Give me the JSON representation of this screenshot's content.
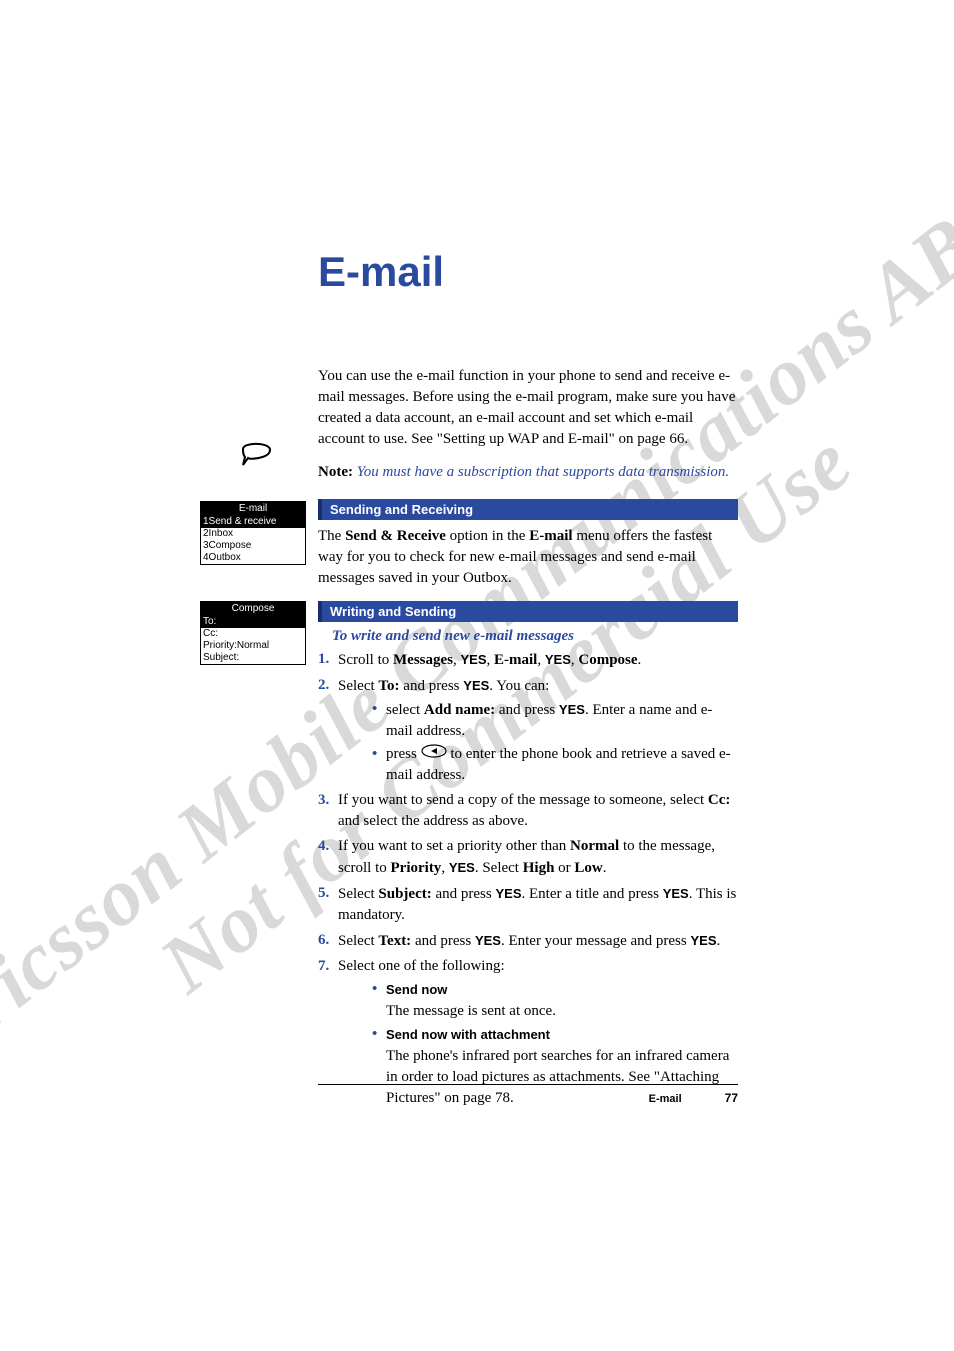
{
  "watermark": {
    "line1": "Ericsson Mobile Communications AB",
    "line2": "Not for Commercial Use",
    "color": "#d9d9d9",
    "fontsize": 82
  },
  "title": {
    "text": "E-mail",
    "color": "#2a4aa0",
    "fontsize": 42
  },
  "intro": "You can use the e-mail function in your phone to send and receive e-mail messages. Before using the e-mail program, make sure you have created a data account, an e-mail account and set which e-mail account to use. See \"Setting up WAP and E-mail\" on page 66.",
  "note": {
    "label": "Note:",
    "text": "You must have a subscription that supports data transmission.",
    "italic_color": "#2a4aa0"
  },
  "sections": {
    "send_recv": {
      "heading": "Sending and Receiving",
      "body_pre": "The ",
      "body_b1": "Send & Receive",
      "body_mid": " option in the ",
      "body_b2": "E-mail",
      "body_post": " menu offers the fastest way for you to check for new e-mail messages and send e-mail messages saved in your Outbox."
    },
    "write_send": {
      "heading": "Writing and Sending",
      "subhead": "To write and send new e-mail messages",
      "steps": [
        {
          "n": "1.",
          "segments": [
            "Scroll to ",
            {
              "b": "Messages"
            },
            ", ",
            {
              "sb": "YES"
            },
            ", ",
            {
              "b": "E-mail"
            },
            ", ",
            {
              "sb": "YES"
            },
            ", ",
            {
              "b": "Compose"
            },
            "."
          ]
        },
        {
          "n": "2.",
          "segments": [
            "Select ",
            {
              "b": "To:"
            },
            " and press ",
            {
              "sb": "YES"
            },
            ". You can:"
          ],
          "bullets": [
            {
              "segments": [
                "select ",
                {
                  "b": "Add name:"
                },
                " and press ",
                {
                  "sb": "YES"
                },
                ". Enter a name and e-mail address."
              ]
            },
            {
              "segments": [
                "press ",
                {
                  "icon": "left-key"
                },
                " to enter the phone book and retrieve a saved e-mail address."
              ]
            }
          ]
        },
        {
          "n": "3.",
          "segments": [
            "If you want to send a copy of the message to someone, select ",
            {
              "b": "Cc:"
            },
            " and select the address as above."
          ]
        },
        {
          "n": "4.",
          "segments": [
            "If you want to set a priority other than ",
            {
              "b": "Normal"
            },
            " to the message, scroll to ",
            {
              "b": "Priority"
            },
            ", ",
            {
              "sb": "YES"
            },
            ". Select ",
            {
              "b": "High"
            },
            " or ",
            {
              "b": "Low"
            },
            "."
          ]
        },
        {
          "n": "5.",
          "segments": [
            "Select ",
            {
              "b": "Subject:"
            },
            " and press ",
            {
              "sb": "YES"
            },
            ". Enter a title and press ",
            {
              "sb": "YES"
            },
            ". This is mandatory."
          ]
        },
        {
          "n": "6.",
          "segments": [
            "Select ",
            {
              "b": "Text:"
            },
            " and press ",
            {
              "sb": "YES"
            },
            ". Enter your message and press ",
            {
              "sb": "YES"
            },
            "."
          ]
        },
        {
          "n": "7.",
          "segments": [
            "Select one of the following:"
          ],
          "subitems": [
            {
              "title": "Send now",
              "body": "The message is sent at once."
            },
            {
              "title": "Send now with attachment",
              "body": "The phone's infrared port searches for an infrared camera in order to load pictures as attachments. See \"Attaching Pictures\" on page 78."
            }
          ]
        }
      ]
    }
  },
  "side": {
    "screen1": {
      "title": "E-mail",
      "rows": [
        {
          "text": "1Send & receive",
          "selected": true
        },
        {
          "text": "2Inbox",
          "selected": false
        },
        {
          "text": "3Compose",
          "selected": false
        },
        {
          "text": "4Outbox",
          "selected": false
        }
      ]
    },
    "screen2": {
      "title": "Compose",
      "rows": [
        {
          "text": "To:",
          "selected": true
        },
        {
          "text": "Cc:",
          "selected": false
        },
        {
          "text": "Priority:Normal",
          "selected": false
        },
        {
          "text": "Subject:",
          "selected": false
        }
      ]
    }
  },
  "footer": {
    "label": "E-mail",
    "page": "77"
  },
  "colors": {
    "accent": "#2a4aa0",
    "heading_bg": "#2a4aa0",
    "heading_border": "#1a2f6a",
    "text": "#000000",
    "background": "#ffffff"
  }
}
